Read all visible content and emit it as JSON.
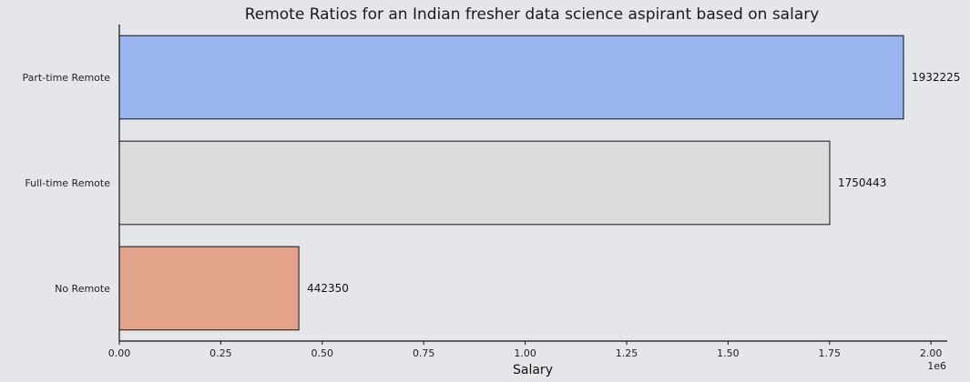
{
  "chart_data": {
    "type": "bar",
    "orientation": "horizontal",
    "title": "Remote Ratios for an Indian fresher data science aspirant based on salary",
    "xlabel": "Salary",
    "ylabel": "",
    "x_offset_label": "1e6",
    "xlim": [
      0,
      2040000
    ],
    "x_ticks": [
      0,
      250000,
      500000,
      750000,
      1000000,
      1250000,
      1500000,
      1750000,
      2000000
    ],
    "x_tick_labels": [
      "0.00",
      "0.25",
      "0.50",
      "0.75",
      "1.00",
      "1.25",
      "1.50",
      "1.75",
      "2.00"
    ],
    "categories": [
      "Part-time Remote",
      "Full-time Remote",
      "No Remote"
    ],
    "values": [
      1932225,
      1750443,
      442350
    ],
    "data_labels": [
      "1932225",
      "1750443",
      "442350"
    ],
    "colors": [
      "#9ab5f0",
      "#dcdcdc",
      "#e3a38b"
    ],
    "grid": false,
    "legend": "none"
  }
}
